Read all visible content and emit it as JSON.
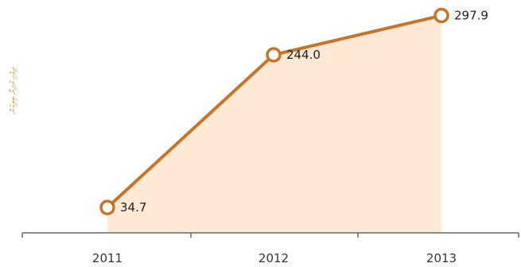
{
  "chart_data": {
    "type": "area",
    "ylabel": "ދިވެހި ރުފިޔާ ބިލިއަން",
    "categories": [
      "2011",
      "2012",
      "2013"
    ],
    "series": [
      {
        "values": [
          34.7,
          244.0,
          297.9
        ],
        "labels": [
          "34.7",
          "244.0",
          "297.9"
        ]
      }
    ],
    "ylim": [
      0,
      305
    ],
    "grid": false,
    "colors": {
      "line": "#c8732a",
      "fill": "#fde9d4",
      "marker_fill": "#ffffff",
      "axis": "#666666"
    }
  }
}
